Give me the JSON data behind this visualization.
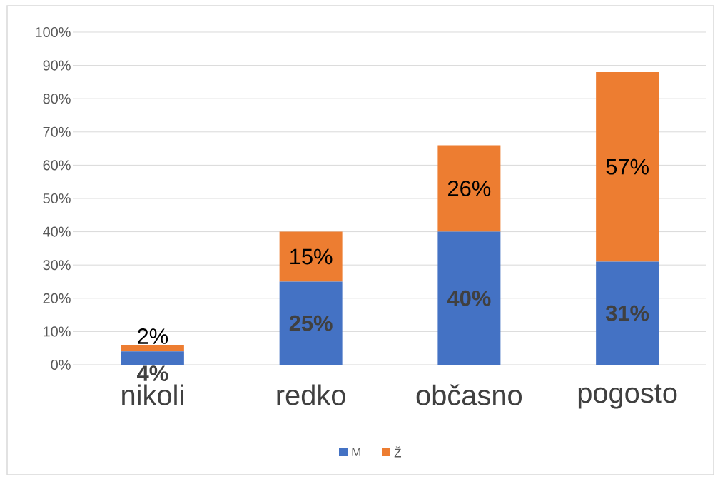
{
  "chart_data": {
    "type": "bar",
    "stacked": true,
    "categories": [
      "nikoli",
      "redko",
      "občasno",
      "pogosto"
    ],
    "series": [
      {
        "name": "M",
        "color": "#4472c4",
        "values": [
          4,
          25,
          40,
          31
        ],
        "value_labels": [
          "4%",
          "25%",
          "40%",
          "31%"
        ]
      },
      {
        "name": "Ž",
        "color": "#ed7d31",
        "values": [
          2,
          15,
          26,
          57
        ],
        "value_labels": [
          "2%",
          "15%",
          "26%",
          "57%"
        ]
      }
    ],
    "ylim": [
      0,
      100
    ],
    "yticks": [
      {
        "value": 0,
        "label": "0%"
      },
      {
        "value": 10,
        "label": "10%"
      },
      {
        "value": 20,
        "label": "20%"
      },
      {
        "value": 30,
        "label": "30%"
      },
      {
        "value": 40,
        "label": "40%"
      },
      {
        "value": 50,
        "label": "50%"
      },
      {
        "value": 60,
        "label": "60%"
      },
      {
        "value": 70,
        "label": "70%"
      },
      {
        "value": 80,
        "label": "80%"
      },
      {
        "value": 90,
        "label": "90%"
      },
      {
        "value": 100,
        "label": "100%"
      }
    ],
    "grid": "y",
    "legend": "bottom"
  }
}
